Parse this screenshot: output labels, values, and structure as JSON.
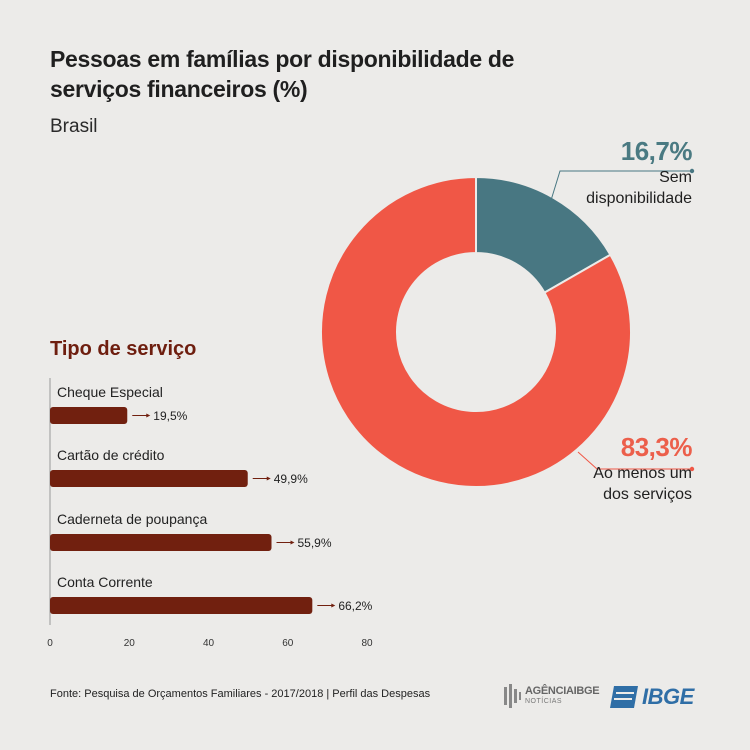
{
  "header": {
    "title": "Pessoas em famílias por disponibilidade de serviços financeiros (%)",
    "subtitle": "Brasil"
  },
  "chart_data": [
    {
      "type": "pie",
      "title": "Pessoas em famílias por disponibilidade de serviços financeiros (%)",
      "subtitle": "Brasil",
      "donut": true,
      "slices": [
        {
          "label": "Sem disponibilidade",
          "label_lines": [
            "Sem",
            "disponibilidade"
          ],
          "value": 16.7,
          "value_label": "16,7%",
          "color": "#487782"
        },
        {
          "label": "Ao menos um dos serviços",
          "label_lines": [
            "Ao menos um",
            "dos serviços"
          ],
          "value": 83.3,
          "value_label": "83,3%",
          "color": "#f05746"
        }
      ]
    },
    {
      "type": "bar",
      "orientation": "horizontal",
      "title": "Tipo de serviço",
      "categories": [
        "Cheque Especial",
        "Cartão de crédito",
        "Caderneta de poupança",
        "Conta Corrente"
      ],
      "values": [
        19.5,
        49.9,
        55.9,
        66.2
      ],
      "value_labels": [
        "19,5%",
        "49,9%",
        "55,9%",
        "66,2%"
      ],
      "xlim": [
        0,
        80
      ],
      "xticks": [
        0,
        20,
        40,
        60,
        80
      ],
      "bar_color": "#71200f",
      "grid": false
    }
  ],
  "footer": {
    "source": "Fonte: Pesquisa de Orçamentos Familiares - 2017/2018 | Perfil das Despesas",
    "agencia_text": "AGÊNCIAIBGE",
    "agencia_sub": "NOTÍCIAS",
    "ibge_text": "IBGE"
  },
  "colors": {
    "background": "#ecebe9",
    "teal": "#487782",
    "coral": "#f05746",
    "bar": "#71200f",
    "heading": "#6e1e0f"
  }
}
